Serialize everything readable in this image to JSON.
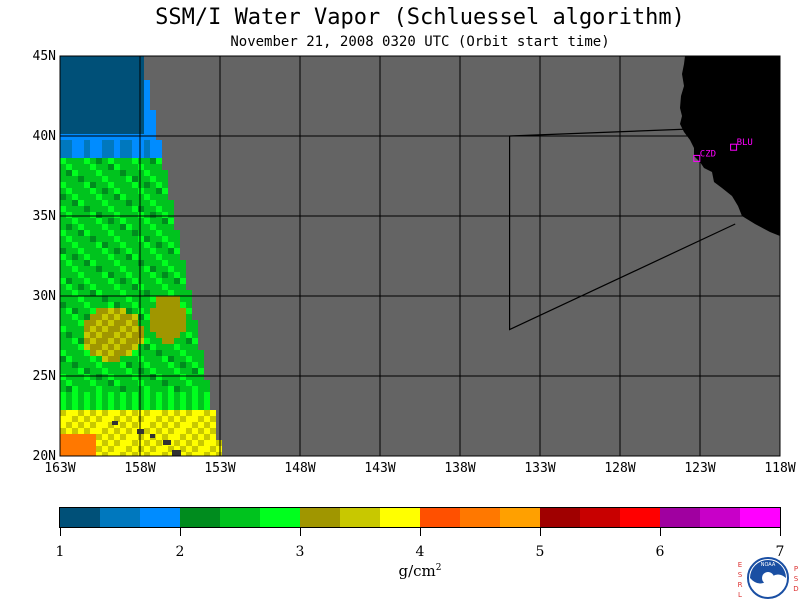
{
  "title": "SSM/I Water Vapor (Schluessel algorithm)",
  "subtitle": "November 21, 2008  0320 UTC  (Orbit start time)",
  "map": {
    "lat_labels": [
      "45N",
      "40N",
      "35N",
      "30N",
      "25N",
      "20N"
    ],
    "lon_labels": [
      "163W",
      "158W",
      "153W",
      "148W",
      "143W",
      "138W",
      "133W",
      "128W",
      "123W",
      "118W"
    ],
    "lat_range": [
      20,
      45
    ],
    "lon_range": [
      -163,
      -118
    ],
    "grid": true,
    "no_data_color": "#646464",
    "land_color": "#000000",
    "stations": [
      {
        "label": "CZD",
        "lon": -123.2,
        "lat": 38.6
      },
      {
        "label": "BLU",
        "lon": -120.9,
        "lat": 39.3
      }
    ],
    "station_color": "#ff00ff",
    "orbit_outline": [
      [
        -134.9,
        40.0
      ],
      [
        -122.0,
        40.5
      ]
    ],
    "orbit_outline_2": [
      [
        -134.9,
        40.0
      ],
      [
        -134.9,
        27.9
      ],
      [
        -120.8,
        34.5
      ]
    ]
  },
  "colorbar": {
    "min": 1,
    "max": 7,
    "tick_labels": [
      "1",
      "2",
      "3",
      "4",
      "5",
      "6",
      "7"
    ],
    "unit": "g/cm",
    "unit_exp": "2",
    "colors": [
      "#005078",
      "#0078be",
      "#008cff",
      "#008c1e",
      "#00c31e",
      "#00ff1e",
      "#a09600",
      "#c8c800",
      "#ffff00",
      "#ff5000",
      "#ff7800",
      "#ffa000",
      "#a00000",
      "#c80000",
      "#ff0000",
      "#a000a0",
      "#c800c8",
      "#ff00ff"
    ]
  },
  "logo": {
    "left_letters": [
      "E",
      "S",
      "R",
      "L"
    ],
    "right_letters": [
      "P",
      "S",
      "D"
    ],
    "badge_text": "NOAA"
  }
}
